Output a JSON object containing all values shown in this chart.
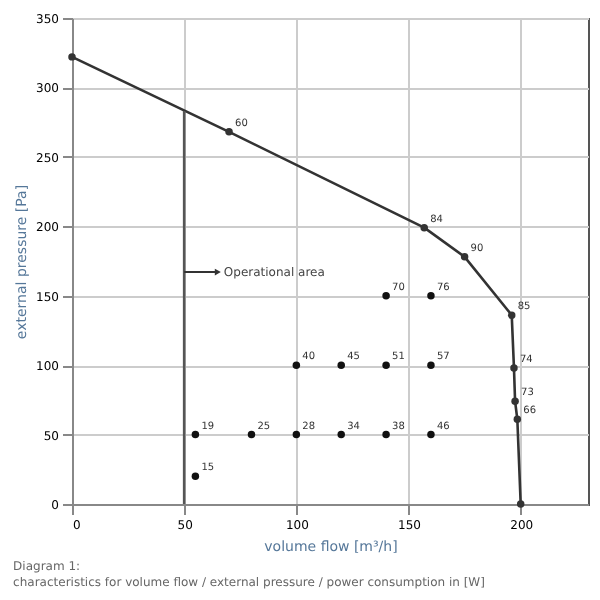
{
  "chart_data": {
    "type": "line",
    "xlabel": "volume flow [m³/h]",
    "ylabel": "external pressure [Pa]",
    "xlim": [
      0,
      230
    ],
    "ylim": [
      0,
      350
    ],
    "xticks": [
      0,
      50,
      100,
      150,
      200
    ],
    "yticks": [
      0,
      50,
      100,
      150,
      200,
      250,
      300,
      350
    ],
    "grid": true,
    "series": [
      {
        "color": "#333333",
        "marker": "circle",
        "line_style": "solid",
        "x": [
          0,
          70,
          157,
          175,
          196,
          197,
          197.5,
          198.5,
          200
        ],
        "values": [
          322,
          268,
          199,
          178,
          136,
          98,
          74,
          61,
          0
        ]
      },
      {
        "color": "#555555",
        "marker": "none",
        "line_style": "solid",
        "x": [
          50,
          50
        ],
        "values": [
          0,
          283
        ]
      },
      {
        "type": "scatter",
        "color": "#111111",
        "marker": "circle",
        "x": [
          55,
          55,
          80,
          100,
          120,
          140,
          160,
          100,
          120,
          140,
          160,
          140,
          160
        ],
        "values": [
          20,
          50,
          50,
          50,
          50,
          50,
          50,
          100,
          100,
          100,
          100,
          150,
          150
        ]
      }
    ],
    "annotations": [
      {
        "text": "Operational area",
        "x": 65,
        "y": 167
      },
      {
        "text": "60",
        "x": 70,
        "y": 268
      },
      {
        "text": "84",
        "x": 157,
        "y": 199
      },
      {
        "text": "90",
        "x": 175,
        "y": 178
      },
      {
        "text": "85",
        "x": 196,
        "y": 136
      },
      {
        "text": "74",
        "x": 197,
        "y": 98
      },
      {
        "text": "73",
        "x": 197.5,
        "y": 74
      },
      {
        "text": "66",
        "x": 198.5,
        "y": 61
      },
      {
        "text": "15",
        "x": 55,
        "y": 20
      },
      {
        "text": "19",
        "x": 55,
        "y": 50
      },
      {
        "text": "25",
        "x": 80,
        "y": 50
      },
      {
        "text": "28",
        "x": 100,
        "y": 50
      },
      {
        "text": "34",
        "x": 120,
        "y": 50
      },
      {
        "text": "38",
        "x": 140,
        "y": 50
      },
      {
        "text": "46",
        "x": 160,
        "y": 50
      },
      {
        "text": "40",
        "x": 100,
        "y": 100
      },
      {
        "text": "45",
        "x": 120,
        "y": 100
      },
      {
        "text": "51",
        "x": 140,
        "y": 100
      },
      {
        "text": "57",
        "x": 160,
        "y": 100
      },
      {
        "text": "70",
        "x": 140,
        "y": 150
      },
      {
        "text": "76",
        "x": 160,
        "y": 150
      },
      "Diagram 1:",
      "characteristics for volume flow / external pressure / power consumption in [W]"
    ]
  }
}
